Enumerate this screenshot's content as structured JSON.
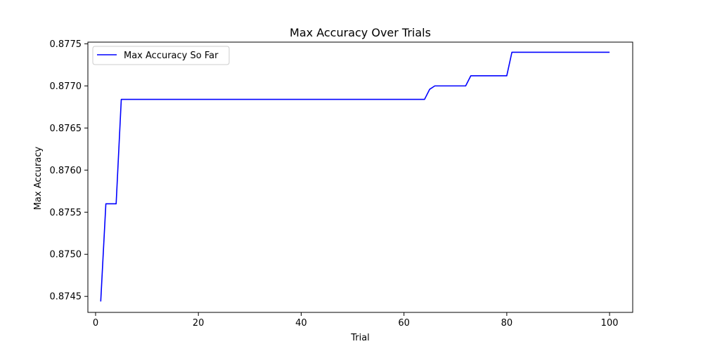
{
  "chart_data": {
    "type": "line",
    "title": "Max Accuracy Over Trials",
    "xlabel": "Trial",
    "ylabel": "Max Accuracy",
    "xlim": [
      -1.5,
      104.5
    ],
    "ylim": [
      0.87431,
      0.87752
    ],
    "xticks": [
      0,
      20,
      40,
      60,
      80,
      100
    ],
    "yticks": [
      0.8745,
      0.875,
      0.8755,
      0.876,
      0.8765,
      0.877,
      0.8775
    ],
    "ytick_labels": [
      "0.8745",
      "0.8750",
      "0.8755",
      "0.8760",
      "0.8765",
      "0.8770",
      "0.8775"
    ],
    "grid": false,
    "legend_position": "upper-left",
    "series": [
      {
        "name": "Max Accuracy So Far",
        "color": "#0000ff",
        "points": [
          [
            1,
            0.87444
          ],
          [
            2,
            0.8756
          ],
          [
            3,
            0.8756
          ],
          [
            4,
            0.8756
          ],
          [
            5,
            0.87684
          ],
          [
            64,
            0.87684
          ],
          [
            65,
            0.87696
          ],
          [
            66,
            0.877
          ],
          [
            72,
            0.877
          ],
          [
            73,
            0.87712
          ],
          [
            80,
            0.87712
          ],
          [
            81,
            0.8774
          ],
          [
            100,
            0.8774
          ]
        ]
      }
    ]
  }
}
